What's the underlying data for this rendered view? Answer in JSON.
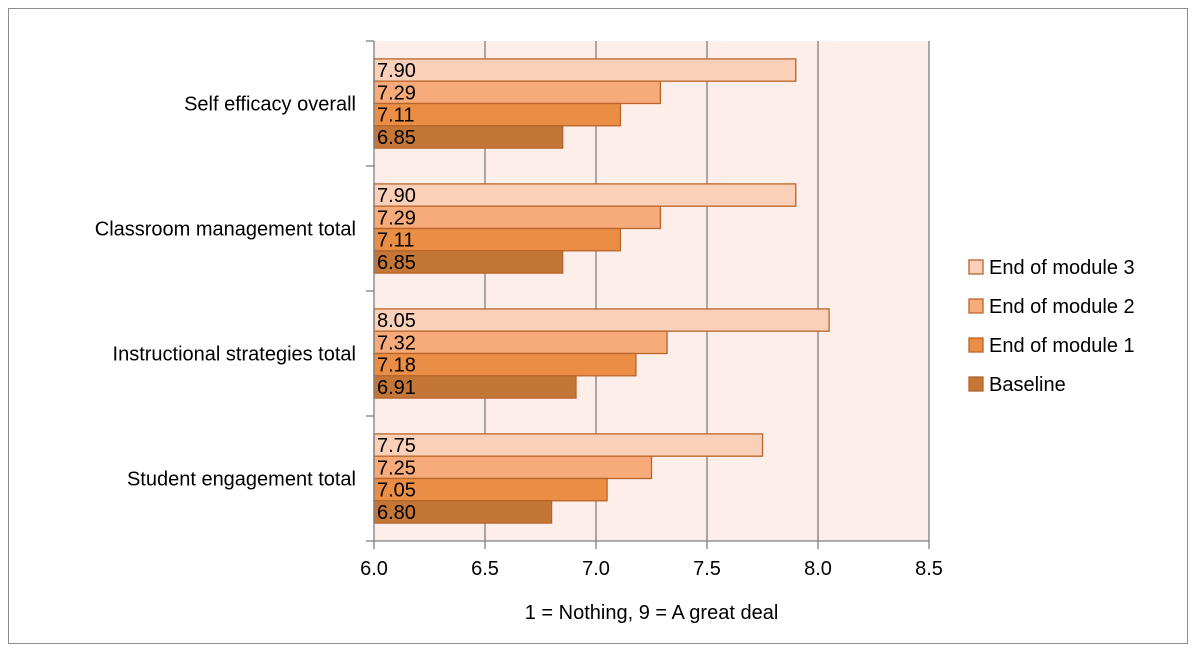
{
  "chart_data": {
    "type": "bar",
    "orientation": "horizontal",
    "title": "",
    "xlabel": "1 = Nothing, 9 = A great deal",
    "ylabel": "",
    "xlim": [
      6.0,
      8.5
    ],
    "x_ticks": [
      "6.0",
      "6.5",
      "7.0",
      "7.5",
      "8.0",
      "8.5"
    ],
    "x_tick_values": [
      6.0,
      6.5,
      7.0,
      7.5,
      8.0,
      8.5
    ],
    "grid": true,
    "legend_position": "right",
    "categories": [
      "Self efficacy overall",
      "Classroom management total",
      "Instructional strategies total",
      "Student engagement total"
    ],
    "series": [
      {
        "name": "End of module 3",
        "color": "#fad0b9",
        "values": [
          7.9,
          7.9,
          8.05,
          7.75
        ],
        "labels": [
          "7.90",
          "7.90",
          "8.05",
          "7.75"
        ]
      },
      {
        "name": "End of module 2",
        "color": "#f7ab7a",
        "values": [
          7.29,
          7.29,
          7.32,
          7.25
        ],
        "labels": [
          "7.29",
          "7.29",
          "7.32",
          "7.25"
        ]
      },
      {
        "name": "End of module 1",
        "color": "#ea8d45",
        "values": [
          7.11,
          7.11,
          7.18,
          7.05
        ],
        "labels": [
          "7.11",
          "7.11",
          "7.18",
          "7.05"
        ]
      },
      {
        "name": "Baseline",
        "color": "#c47637",
        "values": [
          6.85,
          6.85,
          6.91,
          6.8
        ],
        "labels": [
          "6.85",
          "6.85",
          "6.91",
          "6.80"
        ]
      }
    ],
    "plot_background": "#fdeeea",
    "bar_border_color": "#b9652a",
    "grid_color": "#7f7f7f"
  }
}
